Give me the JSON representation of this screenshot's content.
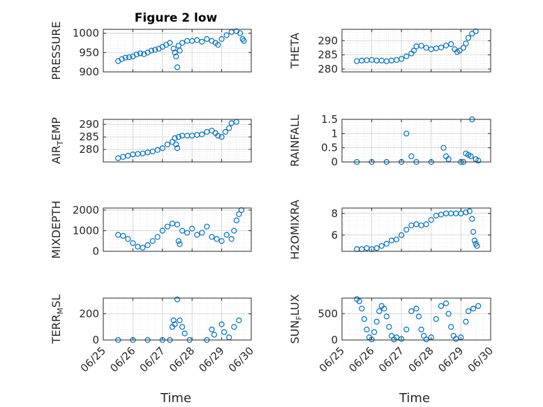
{
  "figure": {
    "title": "Figure 2 low",
    "xlabel": "Time",
    "date_ticks": [
      "06/25",
      "06/26",
      "06/27",
      "06/28",
      "06/29",
      "06/30"
    ],
    "marker_color": "#0072BD",
    "axes_color": "#262626",
    "grid_color": "#d9d9d9"
  },
  "chart_data": [
    {
      "type": "scatter",
      "ylabel": "PRESSURE",
      "xlim": [
        "06/25",
        "06/30"
      ],
      "ylim": [
        900,
        1010
      ],
      "yticks": [
        900,
        950,
        1000
      ],
      "points": [
        [
          "06/25 12:00",
          928
        ],
        [
          "06/25 15:00",
          933
        ],
        [
          "06/25 18:00",
          937
        ],
        [
          "06/25 21:00",
          938
        ],
        [
          "06/26 00:00",
          940
        ],
        [
          "06/26 03:00",
          945
        ],
        [
          "06/26 06:00",
          948
        ],
        [
          "06/26 09:00",
          946
        ],
        [
          "06/26 12:00",
          950
        ],
        [
          "06/26 15:00",
          955
        ],
        [
          "06/26 18:00",
          957
        ],
        [
          "06/26 21:00",
          960
        ],
        [
          "06/27 00:00",
          965
        ],
        [
          "06/27 03:00",
          970
        ],
        [
          "06/27 06:00",
          975
        ],
        [
          "06/27 09:00",
          960
        ],
        [
          "06/27 10:00",
          950
        ],
        [
          "06/27 11:00",
          940
        ],
        [
          "06/27 12:00",
          912
        ],
        [
          "06/27 13:00",
          968
        ],
        [
          "06/27 14:00",
          955
        ],
        [
          "06/27 16:00",
          975
        ],
        [
          "06/27 20:00",
          980
        ],
        [
          "06/28 00:00",
          980
        ],
        [
          "06/28 04:00",
          982
        ],
        [
          "06/28 08:00",
          978
        ],
        [
          "06/28 12:00",
          985
        ],
        [
          "06/28 16:00",
          980
        ],
        [
          "06/28 19:00",
          975
        ],
        [
          "06/28 21:00",
          970
        ],
        [
          "06/29 00:00",
          985
        ],
        [
          "06/29 04:00",
          995
        ],
        [
          "06/29 08:00",
          1003
        ],
        [
          "06/29 12:00",
          1005
        ],
        [
          "06/29 15:00",
          1000
        ],
        [
          "06/29 17:00",
          985
        ],
        [
          "06/29 18:00",
          980
        ]
      ]
    },
    {
      "type": "scatter",
      "ylabel": "THETA",
      "xlim": [
        "06/25",
        "06/30"
      ],
      "ylim": [
        279,
        294
      ],
      "yticks": [
        280,
        285,
        290
      ],
      "points": [
        [
          "06/25 12:00",
          282.8
        ],
        [
          "06/25 16:00",
          283.0
        ],
        [
          "06/25 20:00",
          283.1
        ],
        [
          "06/26 00:00",
          283.2
        ],
        [
          "06/26 04:00",
          283.0
        ],
        [
          "06/26 08:00",
          283.0
        ],
        [
          "06/26 12:00",
          282.8
        ],
        [
          "06/26 16:00",
          283.0
        ],
        [
          "06/26 20:00",
          283.2
        ],
        [
          "06/27 00:00",
          283.6
        ],
        [
          "06/27 04:00",
          284.5
        ],
        [
          "06/27 08:00",
          285.5
        ],
        [
          "06/27 10:00",
          286.5
        ],
        [
          "06/27 12:00",
          288.0
        ],
        [
          "06/27 16:00",
          288.2
        ],
        [
          "06/27 20:00",
          287.5
        ],
        [
          "06/28 00:00",
          287.0
        ],
        [
          "06/28 04:00",
          287.3
        ],
        [
          "06/28 08:00",
          287.6
        ],
        [
          "06/28 12:00",
          288.3
        ],
        [
          "06/28 16:00",
          288.8
        ],
        [
          "06/28 19:00",
          287.0
        ],
        [
          "06/28 21:00",
          286.0
        ],
        [
          "06/28 23:00",
          286.5
        ],
        [
          "06/29 02:00",
          287.5
        ],
        [
          "06/29 04:00",
          289.0
        ],
        [
          "06/29 06:00",
          291.0
        ],
        [
          "06/29 09:00",
          292.5
        ],
        [
          "06/29 12:00",
          293.3
        ]
      ]
    },
    {
      "type": "scatter",
      "ylabel": "AIR_TEMP",
      "xlim": [
        "06/25",
        "06/30"
      ],
      "ylim": [
        275,
        292
      ],
      "yticks": [
        280,
        285,
        290
      ],
      "points": [
        [
          "06/25 12:00",
          276.5
        ],
        [
          "06/25 16:00",
          277.0
        ],
        [
          "06/25 20:00",
          277.5
        ],
        [
          "06/26 00:00",
          278.0
        ],
        [
          "06/26 04:00",
          278.2
        ],
        [
          "06/26 08:00",
          278.4
        ],
        [
          "06/26 12:00",
          278.8
        ],
        [
          "06/26 16:00",
          279.2
        ],
        [
          "06/26 20:00",
          279.8
        ],
        [
          "06/27 00:00",
          280.5
        ],
        [
          "06/27 04:00",
          282.0
        ],
        [
          "06/27 08:00",
          283.0
        ],
        [
          "06/27 10:00",
          284.5
        ],
        [
          "06/27 11:00",
          282.0
        ],
        [
          "06/27 12:00",
          280.5
        ],
        [
          "06/27 13:00",
          285.0
        ],
        [
          "06/27 16:00",
          285.5
        ],
        [
          "06/27 20:00",
          285.5
        ],
        [
          "06/28 00:00",
          285.5
        ],
        [
          "06/28 04:00",
          285.8
        ],
        [
          "06/28 08:00",
          286.0
        ],
        [
          "06/28 12:00",
          287.0
        ],
        [
          "06/28 16:00",
          287.5
        ],
        [
          "06/28 19:00",
          286.5
        ],
        [
          "06/28 21:00",
          285.5
        ],
        [
          "06/29 00:00",
          285.0
        ],
        [
          "06/29 03:00",
          287.0
        ],
        [
          "06/29 06:00",
          288.5
        ],
        [
          "06/29 08:00",
          290.5
        ],
        [
          "06/29 12:00",
          291.0
        ]
      ]
    },
    {
      "type": "scatter",
      "ylabel": "RAINFALL",
      "xlim": [
        "06/25",
        "06/30"
      ],
      "ylim": [
        0,
        1.5
      ],
      "yticks": [
        0,
        0.5,
        1,
        1.5
      ],
      "points": [
        [
          "06/25 12:00",
          0
        ],
        [
          "06/26 00:00",
          0
        ],
        [
          "06/26 12:00",
          0
        ],
        [
          "06/27 00:00",
          0
        ],
        [
          "06/27 04:00",
          1.0
        ],
        [
          "06/27 08:00",
          0.2
        ],
        [
          "06/27 12:00",
          0
        ],
        [
          "06/28 00:00",
          0
        ],
        [
          "06/28 10:00",
          0.5
        ],
        [
          "06/28 12:00",
          0.2
        ],
        [
          "06/28 14:00",
          0.1
        ],
        [
          "06/29 00:00",
          0
        ],
        [
          "06/29 02:00",
          0
        ],
        [
          "06/29 04:00",
          0.3
        ],
        [
          "06/29 06:00",
          0.25
        ],
        [
          "06/29 08:00",
          0.2
        ],
        [
          "06/29 09:00",
          1.5
        ],
        [
          "06/29 12:00",
          0.1
        ],
        [
          "06/29 14:00",
          0.05
        ]
      ]
    },
    {
      "type": "scatter",
      "ylabel": "MIXDEPTH",
      "xlim": [
        "06/25",
        "06/30"
      ],
      "ylim": [
        0,
        2100
      ],
      "yticks": [
        0,
        1000,
        2000
      ],
      "points": [
        [
          "06/25 12:00",
          800
        ],
        [
          "06/25 16:00",
          750
        ],
        [
          "06/25 20:00",
          600
        ],
        [
          "06/26 00:00",
          400
        ],
        [
          "06/26 04:00",
          220
        ],
        [
          "06/26 08:00",
          180
        ],
        [
          "06/26 12:00",
          300
        ],
        [
          "06/26 16:00",
          500
        ],
        [
          "06/26 20:00",
          700
        ],
        [
          "06/27 00:00",
          1000
        ],
        [
          "06/27 04:00",
          1200
        ],
        [
          "06/27 08:00",
          1350
        ],
        [
          "06/27 12:00",
          1300
        ],
        [
          "06/27 13:00",
          500
        ],
        [
          "06/27 14:00",
          350
        ],
        [
          "06/27 16:00",
          1000
        ],
        [
          "06/27 20:00",
          900
        ],
        [
          "06/28 00:00",
          1100
        ],
        [
          "06/28 04:00",
          800
        ],
        [
          "06/28 08:00",
          900
        ],
        [
          "06/28 12:00",
          1200
        ],
        [
          "06/28 16:00",
          700
        ],
        [
          "06/28 20:00",
          600
        ],
        [
          "06/29 00:00",
          500
        ],
        [
          "06/29 04:00",
          800
        ],
        [
          "06/29 08:00",
          600
        ],
        [
          "06/29 10:00",
          1000
        ],
        [
          "06/29 12:00",
          1500
        ],
        [
          "06/29 14:00",
          1800
        ],
        [
          "06/29 16:00",
          2000
        ]
      ]
    },
    {
      "type": "scatter",
      "ylabel": "H2OMIXRA",
      "xlim": [
        "06/25",
        "06/30"
      ],
      "ylim": [
        4.5,
        8.5
      ],
      "yticks": [
        6,
        8
      ],
      "points": [
        [
          "06/25 12:00",
          4.7
        ],
        [
          "06/25 16:00",
          4.7
        ],
        [
          "06/25 20:00",
          4.8
        ],
        [
          "06/26 00:00",
          4.7
        ],
        [
          "06/26 04:00",
          4.8
        ],
        [
          "06/26 08:00",
          5.0
        ],
        [
          "06/26 12:00",
          5.2
        ],
        [
          "06/26 16:00",
          5.5
        ],
        [
          "06/26 20:00",
          5.6
        ],
        [
          "06/27 00:00",
          6.0
        ],
        [
          "06/27 04:00",
          6.5
        ],
        [
          "06/27 08:00",
          6.9
        ],
        [
          "06/27 12:00",
          7.0
        ],
        [
          "06/27 16:00",
          6.9
        ],
        [
          "06/27 20:00",
          7.0
        ],
        [
          "06/28 00:00",
          7.4
        ],
        [
          "06/28 04:00",
          7.8
        ],
        [
          "06/28 08:00",
          7.9
        ],
        [
          "06/28 12:00",
          8.0
        ],
        [
          "06/28 16:00",
          8.0
        ],
        [
          "06/28 20:00",
          8.0
        ],
        [
          "06/29 00:00",
          8.0
        ],
        [
          "06/29 04:00",
          8.1
        ],
        [
          "06/29 07:00",
          8.2
        ],
        [
          "06/29 09:00",
          7.5
        ],
        [
          "06/29 10:00",
          6.3
        ],
        [
          "06/29 11:00",
          5.5
        ],
        [
          "06/29 12:00",
          5.2
        ],
        [
          "06/29 13:00",
          5.0
        ]
      ]
    },
    {
      "type": "scatter",
      "ylabel": "TERR_MSL",
      "xlim": [
        "06/25",
        "06/30"
      ],
      "ylim": [
        0,
        320
      ],
      "yticks": [
        0,
        200
      ],
      "points": [
        [
          "06/25 12:00",
          0
        ],
        [
          "06/26 00:00",
          0
        ],
        [
          "06/26 12:00",
          0
        ],
        [
          "06/27 00:00",
          0
        ],
        [
          "06/27 06:00",
          0
        ],
        [
          "06/27 08:00",
          100
        ],
        [
          "06/27 09:00",
          150
        ],
        [
          "06/27 10:00",
          120
        ],
        [
          "06/27 12:00",
          310
        ],
        [
          "06/27 14:00",
          150
        ],
        [
          "06/27 16:00",
          100
        ],
        [
          "06/27 18:00",
          50
        ],
        [
          "06/27 22:00",
          0
        ],
        [
          "06/28 12:00",
          0
        ],
        [
          "06/28 16:00",
          80
        ],
        [
          "06/28 18:00",
          40
        ],
        [
          "06/29 00:00",
          120
        ],
        [
          "06/29 02:00",
          60
        ],
        [
          "06/29 06:00",
          20
        ],
        [
          "06/29 10:00",
          100
        ],
        [
          "06/29 14:00",
          150
        ]
      ]
    },
    {
      "type": "scatter",
      "ylabel": "SUN_FLUX",
      "xlim": [
        "06/25",
        "06/30"
      ],
      "ylim": [
        0,
        800
      ],
      "yticks": [
        0,
        500
      ],
      "points": [
        [
          "06/25 12:00",
          780
        ],
        [
          "06/25 14:00",
          740
        ],
        [
          "06/25 16:00",
          600
        ],
        [
          "06/25 18:00",
          400
        ],
        [
          "06/25 20:00",
          200
        ],
        [
          "06/25 22:00",
          50
        ],
        [
          "06/26 00:00",
          10
        ],
        [
          "06/26 02:00",
          150
        ],
        [
          "06/26 04:00",
          350
        ],
        [
          "06/26 06:00",
          550
        ],
        [
          "06/26 08:00",
          650
        ],
        [
          "06/26 10:00",
          600
        ],
        [
          "06/26 12:00",
          450
        ],
        [
          "06/26 14:00",
          250
        ],
        [
          "06/26 16:00",
          80
        ],
        [
          "06/26 18:00",
          10
        ],
        [
          "06/26 20:00",
          50
        ],
        [
          "06/27 00:00",
          20
        ],
        [
          "06/27 04:00",
          200
        ],
        [
          "06/27 08:00",
          550
        ],
        [
          "06/27 12:00",
          600
        ],
        [
          "06/27 14:00",
          450
        ],
        [
          "06/27 16:00",
          200
        ],
        [
          "06/27 18:00",
          80
        ],
        [
          "06/27 20:00",
          10
        ],
        [
          "06/28 00:00",
          50
        ],
        [
          "06/28 04:00",
          400
        ],
        [
          "06/28 08:00",
          650
        ],
        [
          "06/28 12:00",
          700
        ],
        [
          "06/28 14:00",
          500
        ],
        [
          "06/28 16:00",
          250
        ],
        [
          "06/28 18:00",
          80
        ],
        [
          "06/28 20:00",
          20
        ],
        [
          "06/29 00:00",
          50
        ],
        [
          "06/29 04:00",
          350
        ],
        [
          "06/29 06:00",
          550
        ],
        [
          "06/29 10:00",
          600
        ],
        [
          "06/29 14:00",
          650
        ]
      ]
    }
  ]
}
